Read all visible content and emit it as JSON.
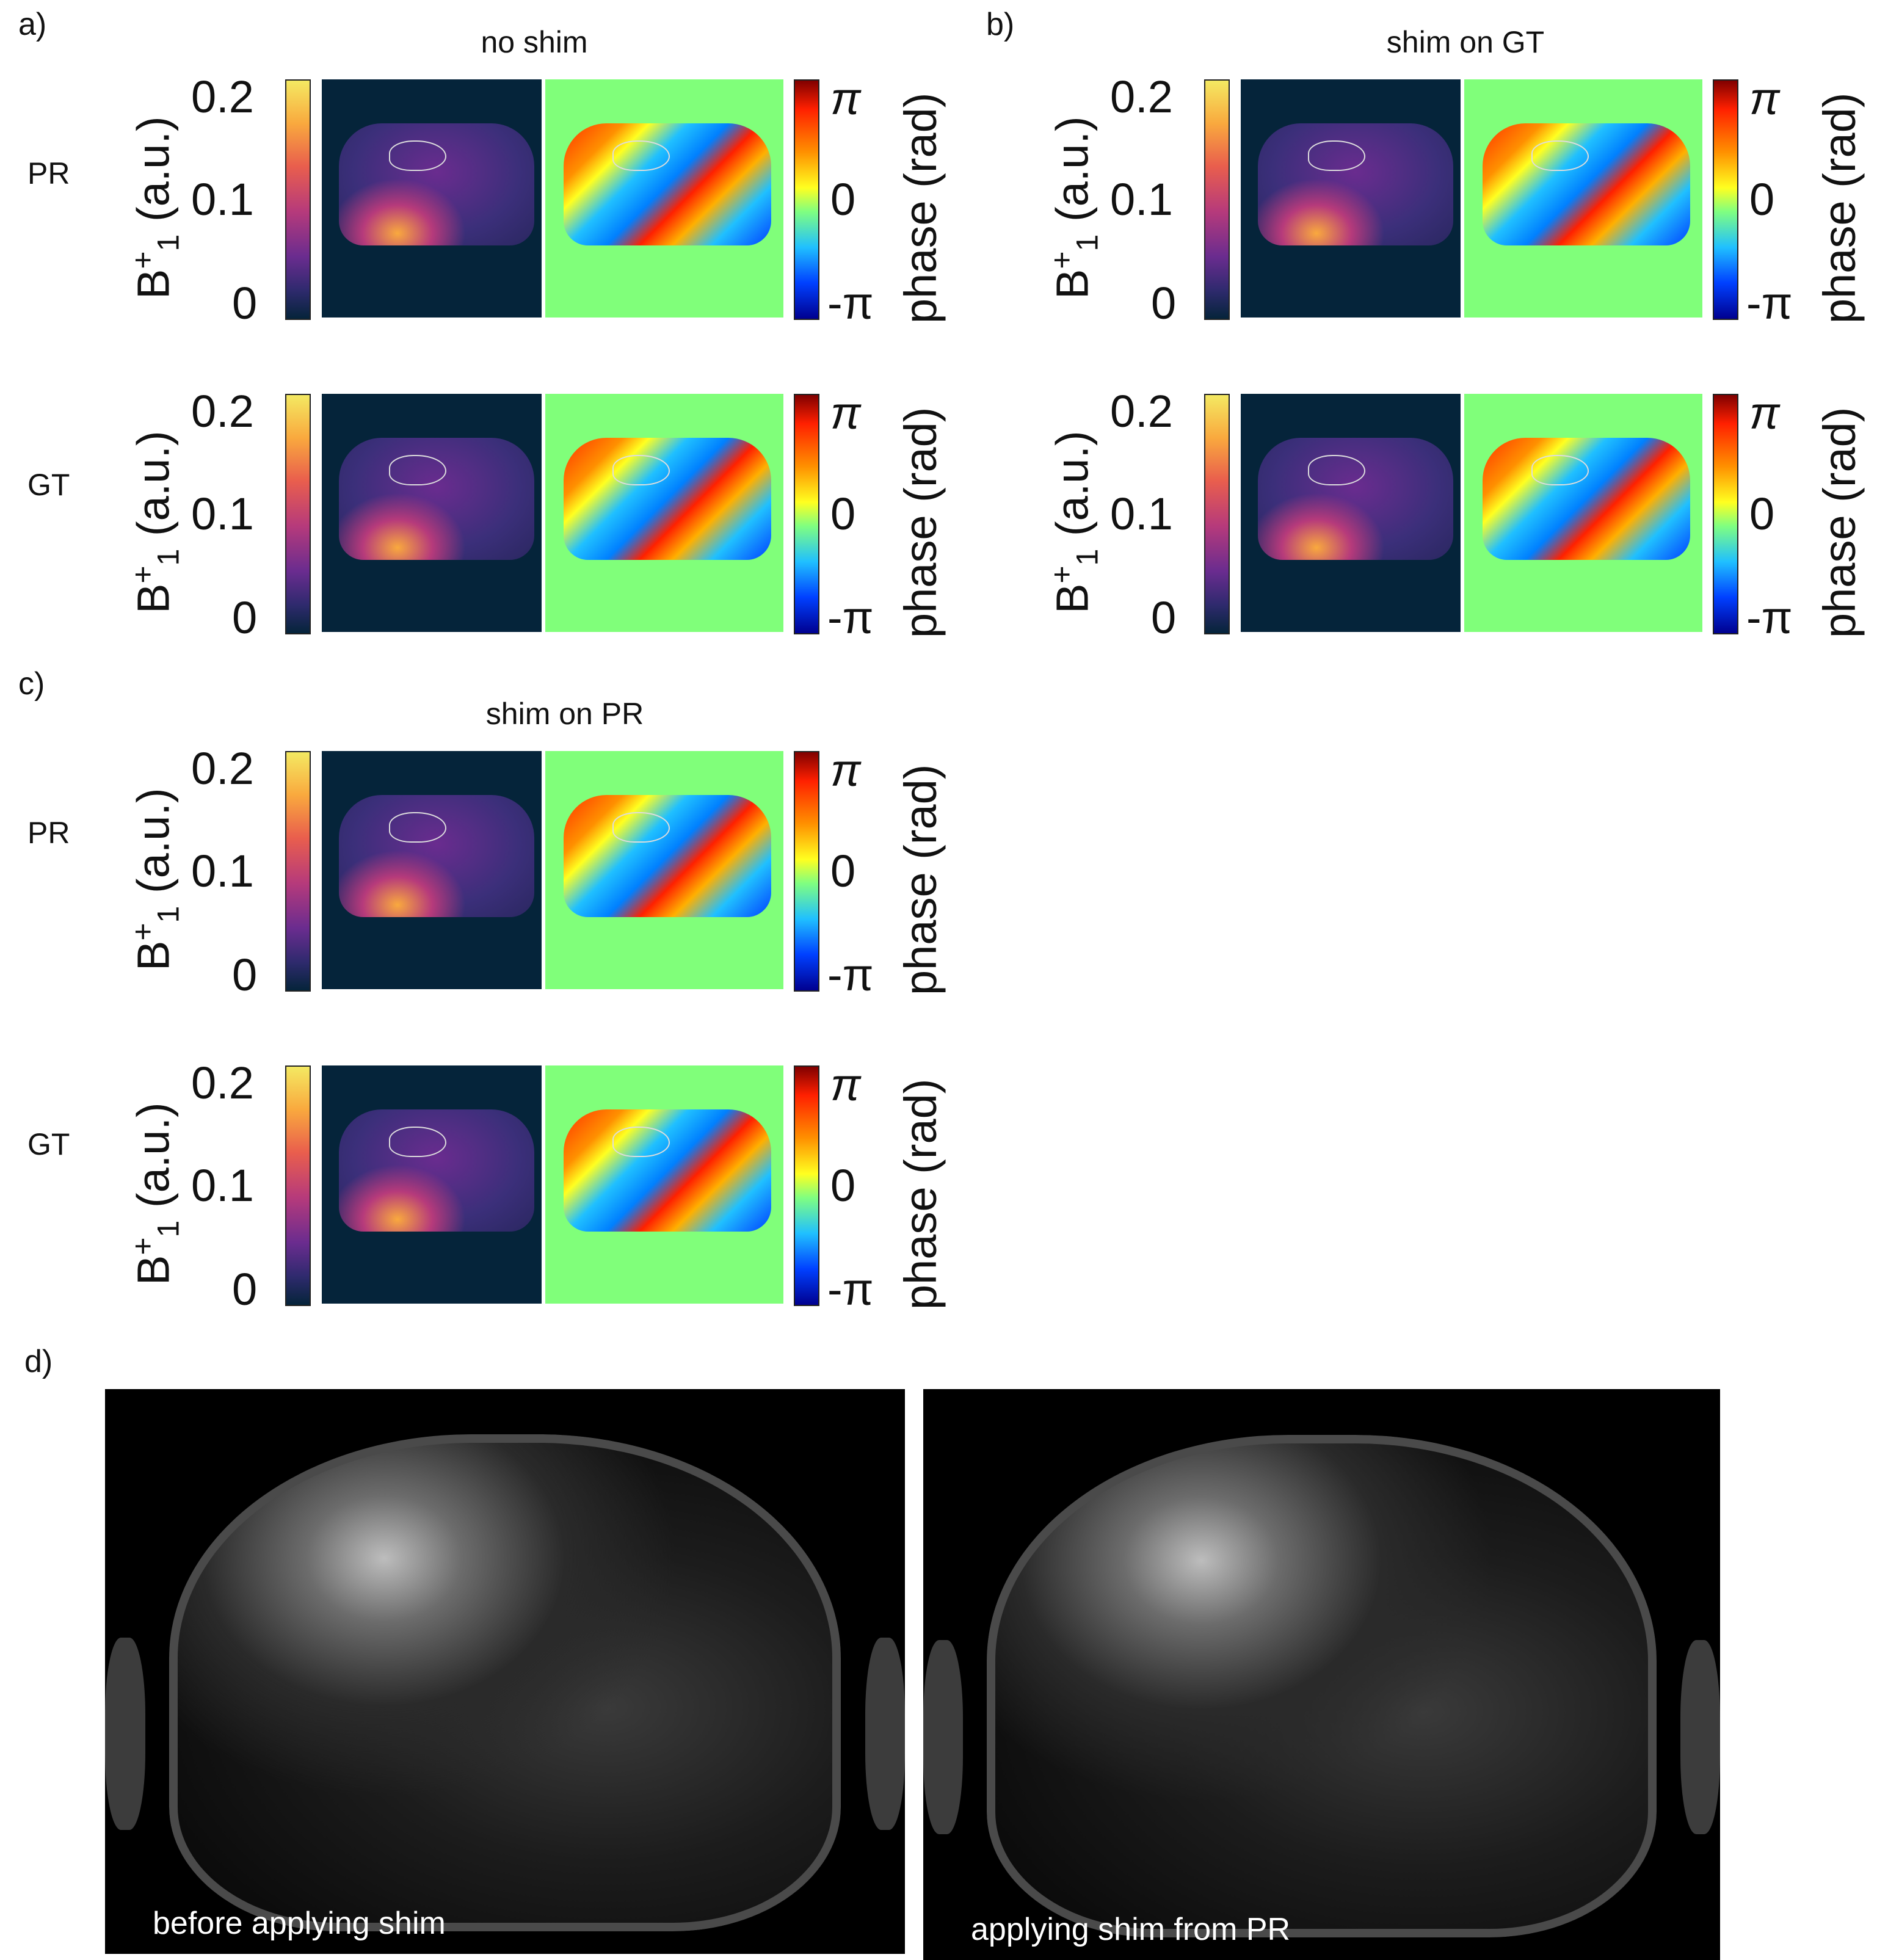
{
  "panels": {
    "a": {
      "letter": "a)",
      "title": "no shim"
    },
    "b": {
      "letter": "b)",
      "title": "shim on GT"
    },
    "c": {
      "letter": "c)",
      "title": "shim on PR"
    },
    "d": {
      "letter": "d)"
    }
  },
  "row_labels": {
    "pr": "PR",
    "gt": "GT"
  },
  "colorbar": {
    "b1_ticks": [
      "0.2",
      "0.1",
      "0"
    ],
    "b1_label_main": "B",
    "b1_label_sup": "+",
    "b1_label_sub": "1",
    "b1_label_unit": " (a.u.)",
    "phase_ticks": [
      "π",
      "0",
      "-π"
    ],
    "phase_label": "phase (rad)"
  },
  "mri": {
    "left_caption": "before applying shim",
    "right_caption": "applying shim from PR"
  },
  "colors": {
    "mag_bg": "#05243a",
    "phase_bg": "#80ff7a"
  }
}
